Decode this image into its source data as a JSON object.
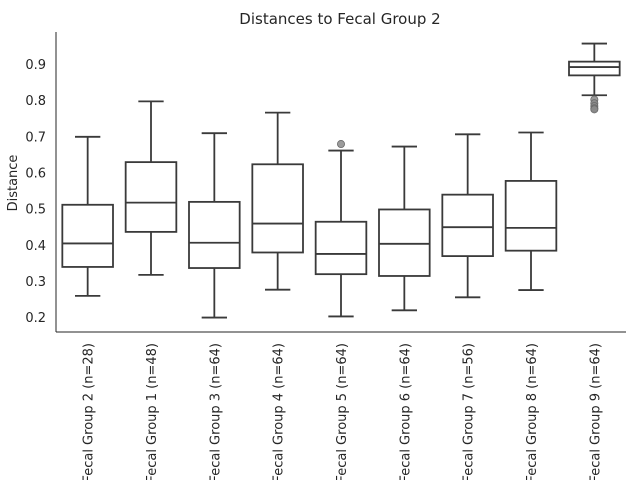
{
  "chart_data": {
    "type": "box",
    "title": "Distances to Fecal Group 2",
    "xlabel": "",
    "ylabel": "Distance",
    "ylim": [
      0.16,
      0.99
    ],
    "yticks": [
      0.2,
      0.3,
      0.4,
      0.5,
      0.6,
      0.7,
      0.8,
      0.9
    ],
    "grid": false,
    "colors": {
      "box_line": "#3a3a3a",
      "outlier": "#8a8a8a",
      "axis": "#262626",
      "background": "#ffffff"
    },
    "categories": [
      "Fecal Group 2 (n=28)",
      "Fecal Group 1 (n=48)",
      "Fecal Group 3 (n=64)",
      "Fecal Group 4 (n=64)",
      "Fecal Group 5 (n=64)",
      "Fecal Group 6 (n=64)",
      "Fecal Group 7 (n=56)",
      "Fecal Group 8 (n=64)",
      "Fecal Group 9 (n=64)"
    ],
    "boxes": [
      {
        "whisker_low": 0.26,
        "q1": 0.34,
        "median": 0.405,
        "q3": 0.512,
        "whisker_high": 0.7,
        "outliers": []
      },
      {
        "whisker_low": 0.318,
        "q1": 0.437,
        "median": 0.518,
        "q3": 0.63,
        "whisker_high": 0.798,
        "outliers": []
      },
      {
        "whisker_low": 0.2,
        "q1": 0.337,
        "median": 0.407,
        "q3": 0.52,
        "whisker_high": 0.71,
        "outliers": []
      },
      {
        "whisker_low": 0.277,
        "q1": 0.38,
        "median": 0.46,
        "q3": 0.624,
        "whisker_high": 0.767,
        "outliers": []
      },
      {
        "whisker_low": 0.203,
        "q1": 0.32,
        "median": 0.376,
        "q3": 0.465,
        "whisker_high": 0.662,
        "outliers": [
          0.68
        ]
      },
      {
        "whisker_low": 0.22,
        "q1": 0.315,
        "median": 0.404,
        "q3": 0.499,
        "whisker_high": 0.673,
        "outliers": []
      },
      {
        "whisker_low": 0.256,
        "q1": 0.37,
        "median": 0.45,
        "q3": 0.54,
        "whisker_high": 0.707,
        "outliers": []
      },
      {
        "whisker_low": 0.276,
        "q1": 0.385,
        "median": 0.448,
        "q3": 0.578,
        "whisker_high": 0.712,
        "outliers": []
      },
      {
        "whisker_low": 0.815,
        "q1": 0.87,
        "median": 0.893,
        "q3": 0.908,
        "whisker_high": 0.958,
        "outliers": [
          0.803,
          0.793,
          0.785,
          0.779,
          0.776
        ]
      }
    ]
  }
}
